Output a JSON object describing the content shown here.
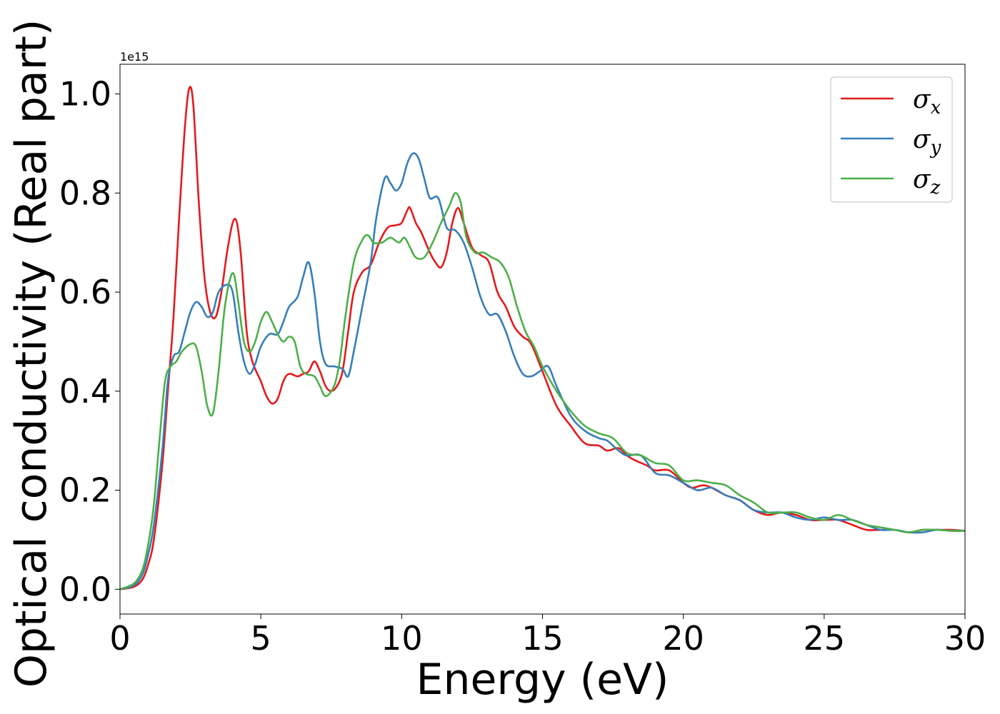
{
  "chart_data": {
    "type": "line",
    "title": "",
    "xlabel": "Energy (eV)",
    "ylabel": "Optical conductivity (Real part)",
    "y_offset_text": "1e15",
    "xlim": [
      0,
      30
    ],
    "ylim": [
      -0.05,
      1.06
    ],
    "y_scale_factor": 1000000000000000.0,
    "x_ticks": [
      0,
      5,
      10,
      15,
      20,
      25,
      30
    ],
    "x_tick_labels": [
      "0",
      "5",
      "10",
      "15",
      "20",
      "25",
      "30"
    ],
    "y_ticks": [
      0.0,
      0.2,
      0.4,
      0.6,
      0.8,
      1.0
    ],
    "y_tick_labels": [
      "0.0",
      "0.2",
      "0.4",
      "0.6",
      "0.8",
      "1.0"
    ],
    "grid": false,
    "legend": {
      "position": "top-right",
      "entries": [
        {
          "symbol": "σ",
          "subscript": "x",
          "color": "#e41a1c"
        },
        {
          "symbol": "σ",
          "subscript": "y",
          "color": "#377eb8"
        },
        {
          "symbol": "σ",
          "subscript": "z",
          "color": "#4daf4a"
        }
      ]
    },
    "series": [
      {
        "name": "σx",
        "color": "#e41a1c",
        "points": [
          [
            0,
            0
          ],
          [
            0.5,
            0.005
          ],
          [
            0.8,
            0.02
          ],
          [
            1.0,
            0.05
          ],
          [
            1.2,
            0.1
          ],
          [
            1.5,
            0.25
          ],
          [
            1.7,
            0.4
          ],
          [
            1.9,
            0.55
          ],
          [
            2.1,
            0.75
          ],
          [
            2.3,
            0.93
          ],
          [
            2.45,
            1.01
          ],
          [
            2.6,
            0.98
          ],
          [
            2.8,
            0.78
          ],
          [
            3.0,
            0.63
          ],
          [
            3.2,
            0.56
          ],
          [
            3.4,
            0.55
          ],
          [
            3.6,
            0.6
          ],
          [
            3.8,
            0.68
          ],
          [
            4.0,
            0.74
          ],
          [
            4.15,
            0.74
          ],
          [
            4.3,
            0.67
          ],
          [
            4.5,
            0.52
          ],
          [
            4.7,
            0.46
          ],
          [
            5.0,
            0.42
          ],
          [
            5.2,
            0.39
          ],
          [
            5.4,
            0.375
          ],
          [
            5.6,
            0.385
          ],
          [
            5.8,
            0.42
          ],
          [
            6.0,
            0.435
          ],
          [
            6.3,
            0.43
          ],
          [
            6.5,
            0.435
          ],
          [
            6.7,
            0.44
          ],
          [
            6.9,
            0.46
          ],
          [
            7.1,
            0.44
          ],
          [
            7.3,
            0.41
          ],
          [
            7.5,
            0.4
          ],
          [
            7.7,
            0.41
          ],
          [
            7.9,
            0.44
          ],
          [
            8.1,
            0.52
          ],
          [
            8.3,
            0.6
          ],
          [
            8.6,
            0.64
          ],
          [
            8.9,
            0.655
          ],
          [
            9.2,
            0.7
          ],
          [
            9.5,
            0.73
          ],
          [
            9.8,
            0.735
          ],
          [
            10.0,
            0.74
          ],
          [
            10.2,
            0.765
          ],
          [
            10.3,
            0.77
          ],
          [
            10.5,
            0.74
          ],
          [
            10.7,
            0.72
          ],
          [
            11.0,
            0.68
          ],
          [
            11.2,
            0.66
          ],
          [
            11.4,
            0.65
          ],
          [
            11.6,
            0.68
          ],
          [
            11.8,
            0.74
          ],
          [
            12.0,
            0.77
          ],
          [
            12.2,
            0.74
          ],
          [
            12.5,
            0.69
          ],
          [
            12.8,
            0.675
          ],
          [
            13.1,
            0.66
          ],
          [
            13.4,
            0.6
          ],
          [
            13.7,
            0.57
          ],
          [
            14.0,
            0.53
          ],
          [
            14.3,
            0.51
          ],
          [
            14.6,
            0.495
          ],
          [
            15.0,
            0.44
          ],
          [
            15.5,
            0.37
          ],
          [
            16.0,
            0.33
          ],
          [
            16.5,
            0.295
          ],
          [
            17.0,
            0.29
          ],
          [
            17.3,
            0.28
          ],
          [
            17.7,
            0.285
          ],
          [
            18.0,
            0.27
          ],
          [
            18.3,
            0.26
          ],
          [
            18.7,
            0.25
          ],
          [
            19.0,
            0.24
          ],
          [
            19.5,
            0.24
          ],
          [
            20.0,
            0.215
          ],
          [
            20.3,
            0.205
          ],
          [
            20.7,
            0.21
          ],
          [
            21.0,
            0.205
          ],
          [
            21.5,
            0.19
          ],
          [
            22.0,
            0.18
          ],
          [
            22.5,
            0.16
          ],
          [
            23.0,
            0.15
          ],
          [
            23.5,
            0.155
          ],
          [
            24.0,
            0.15
          ],
          [
            24.5,
            0.14
          ],
          [
            25.0,
            0.14
          ],
          [
            25.5,
            0.14
          ],
          [
            26.0,
            0.13
          ],
          [
            26.5,
            0.12
          ],
          [
            27.0,
            0.12
          ],
          [
            27.5,
            0.12
          ],
          [
            28.0,
            0.115
          ],
          [
            28.5,
            0.12
          ],
          [
            29.0,
            0.12
          ],
          [
            29.5,
            0.12
          ],
          [
            30.0,
            0.118
          ]
        ]
      },
      {
        "name": "σy",
        "color": "#377eb8",
        "points": [
          [
            0,
            0
          ],
          [
            0.5,
            0.008
          ],
          [
            0.8,
            0.03
          ],
          [
            1.0,
            0.07
          ],
          [
            1.2,
            0.13
          ],
          [
            1.5,
            0.28
          ],
          [
            1.7,
            0.42
          ],
          [
            1.9,
            0.47
          ],
          [
            2.1,
            0.48
          ],
          [
            2.3,
            0.52
          ],
          [
            2.5,
            0.56
          ],
          [
            2.7,
            0.58
          ],
          [
            2.9,
            0.57
          ],
          [
            3.1,
            0.55
          ],
          [
            3.3,
            0.56
          ],
          [
            3.5,
            0.6
          ],
          [
            3.8,
            0.615
          ],
          [
            4.0,
            0.6
          ],
          [
            4.2,
            0.52
          ],
          [
            4.4,
            0.46
          ],
          [
            4.6,
            0.435
          ],
          [
            4.8,
            0.455
          ],
          [
            5.0,
            0.49
          ],
          [
            5.3,
            0.515
          ],
          [
            5.6,
            0.515
          ],
          [
            5.8,
            0.54
          ],
          [
            6.0,
            0.57
          ],
          [
            6.3,
            0.59
          ],
          [
            6.5,
            0.63
          ],
          [
            6.7,
            0.66
          ],
          [
            6.9,
            0.6
          ],
          [
            7.1,
            0.5
          ],
          [
            7.3,
            0.455
          ],
          [
            7.6,
            0.45
          ],
          [
            7.9,
            0.445
          ],
          [
            8.1,
            0.43
          ],
          [
            8.3,
            0.48
          ],
          [
            8.6,
            0.57
          ],
          [
            8.9,
            0.66
          ],
          [
            9.1,
            0.75
          ],
          [
            9.4,
            0.83
          ],
          [
            9.6,
            0.82
          ],
          [
            9.8,
            0.805
          ],
          [
            10.0,
            0.82
          ],
          [
            10.2,
            0.86
          ],
          [
            10.4,
            0.88
          ],
          [
            10.6,
            0.87
          ],
          [
            10.8,
            0.83
          ],
          [
            11.0,
            0.79
          ],
          [
            11.3,
            0.79
          ],
          [
            11.6,
            0.73
          ],
          [
            11.9,
            0.725
          ],
          [
            12.2,
            0.7
          ],
          [
            12.5,
            0.65
          ],
          [
            12.8,
            0.59
          ],
          [
            13.1,
            0.555
          ],
          [
            13.4,
            0.555
          ],
          [
            13.7,
            0.52
          ],
          [
            14.0,
            0.47
          ],
          [
            14.3,
            0.435
          ],
          [
            14.6,
            0.43
          ],
          [
            14.9,
            0.44
          ],
          [
            15.2,
            0.45
          ],
          [
            15.5,
            0.41
          ],
          [
            16.0,
            0.35
          ],
          [
            16.5,
            0.32
          ],
          [
            17.0,
            0.305
          ],
          [
            17.3,
            0.3
          ],
          [
            17.7,
            0.28
          ],
          [
            18.0,
            0.27
          ],
          [
            18.5,
            0.27
          ],
          [
            19.0,
            0.235
          ],
          [
            19.5,
            0.23
          ],
          [
            20.0,
            0.215
          ],
          [
            20.5,
            0.2
          ],
          [
            21.0,
            0.205
          ],
          [
            21.5,
            0.19
          ],
          [
            22.0,
            0.18
          ],
          [
            22.5,
            0.16
          ],
          [
            23.0,
            0.155
          ],
          [
            23.5,
            0.155
          ],
          [
            24.0,
            0.145
          ],
          [
            24.5,
            0.14
          ],
          [
            25.0,
            0.145
          ],
          [
            25.5,
            0.14
          ],
          [
            26.0,
            0.14
          ],
          [
            26.5,
            0.13
          ],
          [
            27.0,
            0.12
          ],
          [
            27.5,
            0.12
          ],
          [
            28.0,
            0.115
          ],
          [
            28.5,
            0.115
          ],
          [
            29.0,
            0.12
          ],
          [
            29.5,
            0.118
          ],
          [
            30.0,
            0.118
          ]
        ]
      },
      {
        "name": "σz",
        "color": "#4daf4a",
        "points": [
          [
            0,
            0
          ],
          [
            0.5,
            0.012
          ],
          [
            0.8,
            0.04
          ],
          [
            1.0,
            0.09
          ],
          [
            1.2,
            0.17
          ],
          [
            1.4,
            0.3
          ],
          [
            1.6,
            0.42
          ],
          [
            1.8,
            0.45
          ],
          [
            2.0,
            0.46
          ],
          [
            2.2,
            0.48
          ],
          [
            2.5,
            0.495
          ],
          [
            2.7,
            0.49
          ],
          [
            2.9,
            0.44
          ],
          [
            3.1,
            0.37
          ],
          [
            3.3,
            0.355
          ],
          [
            3.5,
            0.44
          ],
          [
            3.7,
            0.56
          ],
          [
            3.9,
            0.625
          ],
          [
            4.05,
            0.635
          ],
          [
            4.2,
            0.58
          ],
          [
            4.4,
            0.5
          ],
          [
            4.6,
            0.48
          ],
          [
            4.8,
            0.5
          ],
          [
            5.0,
            0.54
          ],
          [
            5.2,
            0.56
          ],
          [
            5.4,
            0.54
          ],
          [
            5.6,
            0.515
          ],
          [
            5.8,
            0.5
          ],
          [
            6.0,
            0.51
          ],
          [
            6.2,
            0.5
          ],
          [
            6.4,
            0.45
          ],
          [
            6.6,
            0.435
          ],
          [
            6.9,
            0.43
          ],
          [
            7.1,
            0.41
          ],
          [
            7.3,
            0.39
          ],
          [
            7.6,
            0.41
          ],
          [
            7.8,
            0.46
          ],
          [
            8.0,
            0.55
          ],
          [
            8.3,
            0.66
          ],
          [
            8.6,
            0.705
          ],
          [
            8.8,
            0.715
          ],
          [
            9.0,
            0.7
          ],
          [
            9.3,
            0.7
          ],
          [
            9.6,
            0.71
          ],
          [
            9.9,
            0.7
          ],
          [
            10.1,
            0.71
          ],
          [
            10.3,
            0.69
          ],
          [
            10.5,
            0.67
          ],
          [
            10.8,
            0.67
          ],
          [
            11.1,
            0.7
          ],
          [
            11.4,
            0.74
          ],
          [
            11.7,
            0.775
          ],
          [
            11.9,
            0.8
          ],
          [
            12.1,
            0.78
          ],
          [
            12.3,
            0.71
          ],
          [
            12.6,
            0.68
          ],
          [
            12.9,
            0.68
          ],
          [
            13.2,
            0.67
          ],
          [
            13.5,
            0.66
          ],
          [
            13.8,
            0.63
          ],
          [
            14.1,
            0.57
          ],
          [
            14.4,
            0.52
          ],
          [
            14.7,
            0.49
          ],
          [
            15.0,
            0.45
          ],
          [
            15.5,
            0.4
          ],
          [
            16.0,
            0.36
          ],
          [
            16.5,
            0.33
          ],
          [
            17.0,
            0.315
          ],
          [
            17.5,
            0.305
          ],
          [
            18.0,
            0.275
          ],
          [
            18.5,
            0.27
          ],
          [
            19.0,
            0.255
          ],
          [
            19.5,
            0.25
          ],
          [
            20.0,
            0.22
          ],
          [
            20.5,
            0.22
          ],
          [
            21.0,
            0.215
          ],
          [
            21.5,
            0.21
          ],
          [
            22.0,
            0.19
          ],
          [
            22.5,
            0.175
          ],
          [
            23.0,
            0.155
          ],
          [
            23.5,
            0.155
          ],
          [
            24.0,
            0.155
          ],
          [
            24.5,
            0.145
          ],
          [
            25.0,
            0.14
          ],
          [
            25.5,
            0.15
          ],
          [
            26.0,
            0.14
          ],
          [
            26.5,
            0.13
          ],
          [
            27.0,
            0.125
          ],
          [
            27.5,
            0.12
          ],
          [
            28.0,
            0.115
          ],
          [
            28.5,
            0.12
          ],
          [
            29.0,
            0.12
          ],
          [
            29.5,
            0.118
          ],
          [
            30.0,
            0.118
          ]
        ]
      }
    ]
  }
}
